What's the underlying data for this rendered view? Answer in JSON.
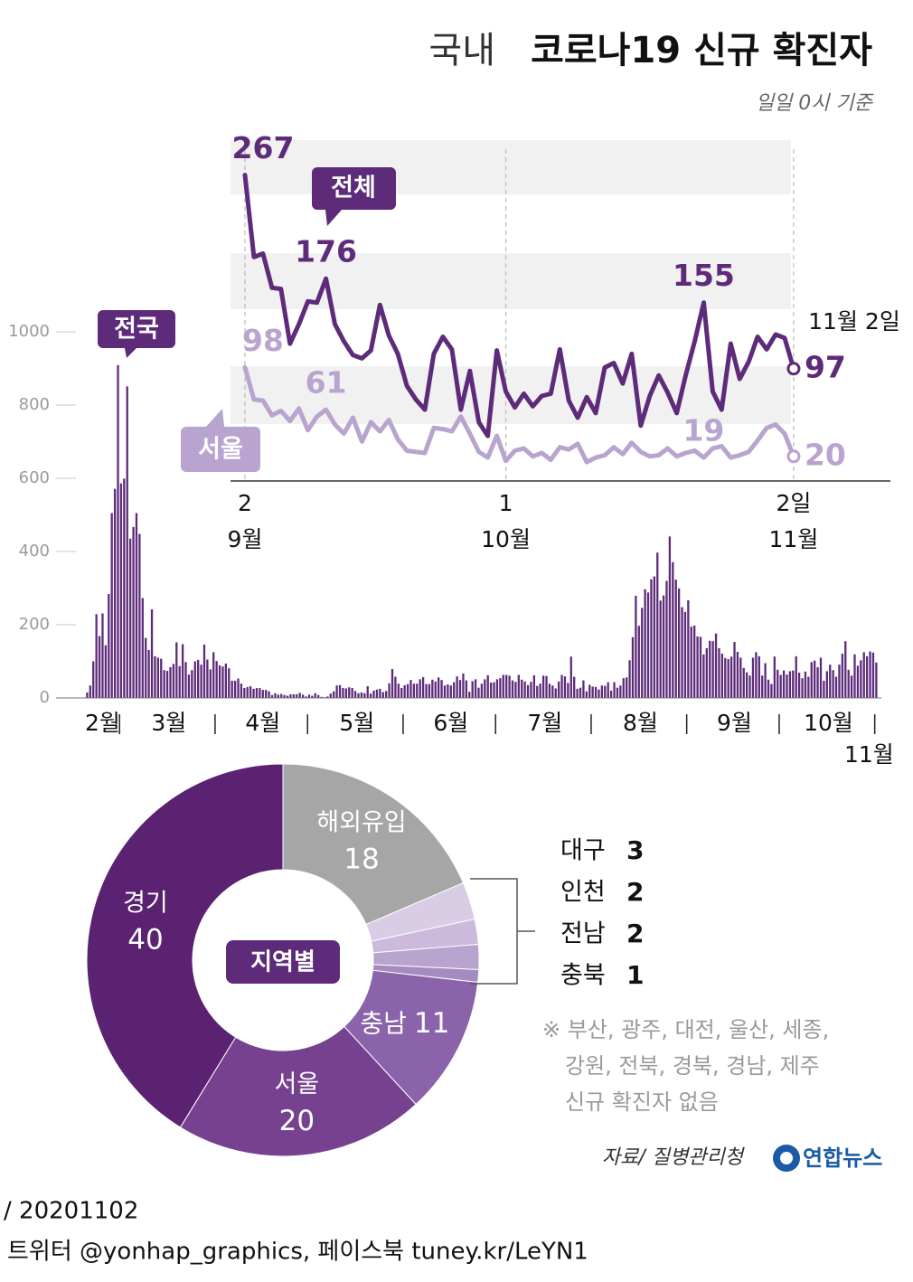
{
  "header": {
    "title_prefix": "국내",
    "title": "코로나19 신규 확진자",
    "subtitle": "일일 0시 기준"
  },
  "chart_data": [
    {
      "type": "bar",
      "series_name": "전국",
      "color": "#5e2b7a",
      "ylim": [
        0,
        1000
      ],
      "yticks": [
        0,
        200,
        400,
        600,
        800,
        1000
      ],
      "categories": [
        "2월",
        null,
        null,
        null,
        null,
        null,
        null,
        null,
        null,
        null,
        null,
        null,
        "3월",
        null,
        null,
        null,
        null,
        null,
        null,
        null,
        null,
        null,
        null,
        null,
        null,
        null,
        null,
        null,
        null,
        null,
        null,
        null,
        null,
        null,
        null,
        null,
        null,
        null,
        null,
        null,
        null,
        null,
        null,
        "4월",
        null,
        null,
        null,
        null,
        null,
        null,
        null,
        null,
        null,
        null,
        null,
        null,
        null,
        null,
        null,
        null,
        null,
        null,
        null,
        null,
        null,
        null,
        null,
        null,
        null,
        null,
        null,
        null,
        null,
        "5월",
        null,
        null,
        null,
        null,
        null,
        null,
        null,
        null,
        null,
        null,
        null,
        null,
        null,
        null,
        null,
        null,
        null,
        null,
        null,
        null,
        null,
        null,
        null,
        null,
        null,
        null,
        null,
        null,
        null,
        null,
        "6월",
        null,
        null,
        null,
        null,
        null,
        null,
        null,
        null,
        null,
        null,
        null,
        null,
        null,
        null,
        null,
        null,
        null,
        null,
        null,
        null,
        null,
        null,
        null,
        null,
        null,
        null,
        null,
        null,
        null,
        "7월",
        null,
        null,
        null,
        null,
        null,
        null,
        null,
        null,
        null,
        null,
        null,
        null,
        null,
        null,
        null,
        null,
        null,
        null,
        null,
        null,
        null,
        null,
        null,
        null,
        null,
        null,
        null,
        null,
        null,
        null,
        "8월",
        null,
        null,
        null,
        null,
        null,
        null,
        null,
        null,
        null,
        null,
        null,
        null,
        null,
        null,
        null,
        null,
        null,
        null,
        null,
        null,
        null,
        null,
        null,
        null,
        null,
        null,
        null,
        null,
        null,
        null,
        "9월",
        null,
        null,
        null,
        null,
        null,
        null,
        null,
        null,
        null,
        null,
        null,
        null,
        null,
        null,
        null,
        null,
        null,
        null,
        null,
        null,
        null,
        null,
        null,
        null,
        null,
        null,
        null,
        null,
        null,
        "10월",
        null,
        null,
        null,
        null,
        null,
        null,
        null,
        null,
        null,
        null,
        null,
        null,
        null,
        null,
        null,
        null,
        null,
        null,
        null,
        null,
        null,
        null,
        null,
        null,
        null,
        null,
        null,
        null,
        null,
        null,
        "11월"
      ],
      "values": [
        1,
        15,
        34,
        100,
        229,
        169,
        231,
        144,
        284,
        505,
        571,
        909,
        586,
        599,
        851,
        435,
        467,
        505,
        448,
        273,
        164,
        131,
        242,
        114,
        110,
        107,
        76,
        74,
        84,
        93,
        152,
        87,
        147,
        98,
        64,
        76,
        100,
        104,
        91,
        146,
        105,
        78,
        125,
        101,
        89,
        86,
        94,
        81,
        47,
        47,
        53,
        39,
        27,
        30,
        32,
        25,
        27,
        27,
        22,
        22,
        18,
        8,
        13,
        9,
        11,
        8,
        6,
        10,
        10,
        10,
        14,
        9,
        4,
        9,
        6,
        13,
        8,
        3,
        2,
        4,
        12,
        18,
        34,
        35,
        27,
        26,
        29,
        27,
        19,
        13,
        15,
        13,
        32,
        12,
        20,
        23,
        25,
        16,
        19,
        40,
        79,
        58,
        39,
        27,
        35,
        38,
        49,
        39,
        39,
        51,
        57,
        38,
        38,
        50,
        45,
        56,
        49,
        34,
        37,
        34,
        43,
        59,
        49,
        67,
        48,
        17,
        46,
        51,
        28,
        39,
        51,
        62,
        42,
        43,
        51,
        54,
        63,
        63,
        61,
        48,
        44,
        63,
        50,
        45,
        35,
        44,
        62,
        33,
        39,
        61,
        60,
        39,
        34,
        26,
        45,
        63,
        59,
        41,
        113,
        58,
        25,
        28,
        48,
        18,
        36,
        31,
        30,
        23,
        34,
        33,
        43,
        20,
        43,
        28,
        34,
        54,
        56,
        103,
        166,
        279,
        197,
        246,
        297,
        288,
        324,
        332,
        397,
        266,
        280,
        320,
        441,
        371,
        323,
        299,
        248,
        235,
        267,
        195,
        198,
        168,
        167,
        119,
        136,
        156,
        155,
        176,
        136,
        121,
        109,
        106,
        113,
        153,
        126,
        110,
        82,
        70,
        61,
        110,
        125,
        114,
        61,
        95,
        50,
        38,
        113,
        77,
        63,
        75,
        64,
        73,
        75,
        114,
        69,
        54,
        72,
        58,
        98,
        102,
        84,
        110,
        47,
        73,
        91,
        76,
        58,
        91,
        121,
        155,
        77,
        61,
        119,
        88,
        103,
        125,
        114,
        127,
        124,
        97
      ]
    },
    {
      "type": "line",
      "ylim": [
        0,
        300
      ],
      "categories": [
        "2",
        null,
        null,
        null,
        null,
        null,
        null,
        null,
        null,
        null,
        null,
        null,
        null,
        null,
        null,
        null,
        null,
        null,
        null,
        null,
        null,
        null,
        null,
        null,
        null,
        null,
        null,
        null,
        null,
        "1",
        null,
        null,
        null,
        null,
        null,
        null,
        null,
        null,
        null,
        null,
        null,
        null,
        null,
        null,
        null,
        null,
        null,
        null,
        null,
        null,
        null,
        null,
        null,
        null,
        null,
        null,
        null,
        null,
        null,
        null,
        null,
        "2일"
      ],
      "months": [
        "9월",
        "10월",
        "11월"
      ],
      "annotation": "11월 2일",
      "labeled_points": [
        0,
        9,
        51,
        61
      ],
      "series": [
        {
          "name": "전체",
          "color": "#5e2b7a",
          "values": [
            267,
            195,
            198,
            168,
            167,
            119,
            136,
            156,
            155,
            176,
            136,
            121,
            109,
            106,
            113,
            153,
            126,
            110,
            82,
            70,
            61,
            110,
            125,
            114,
            61,
            95,
            50,
            38,
            113,
            77,
            63,
            75,
            64,
            73,
            75,
            114,
            69,
            54,
            72,
            58,
            98,
            102,
            84,
            110,
            47,
            73,
            91,
            76,
            58,
            91,
            121,
            155,
            77,
            61,
            119,
            88,
            103,
            125,
            114,
            127,
            124,
            97
          ]
        },
        {
          "name": "서울",
          "color": "#b9a3cf",
          "values": [
            98,
            70,
            69,
            56,
            60,
            51,
            62,
            43,
            55,
            61,
            48,
            40,
            54,
            33,
            50,
            42,
            52,
            35,
            25,
            24,
            23,
            45,
            44,
            42,
            55,
            40,
            24,
            19,
            38,
            16,
            25,
            27,
            20,
            23,
            17,
            28,
            26,
            31,
            15,
            19,
            21,
            28,
            22,
            32,
            24,
            20,
            21,
            27,
            20,
            23,
            25,
            19,
            27,
            29,
            19,
            21,
            24,
            34,
            45,
            48,
            40,
            20
          ]
        }
      ]
    },
    {
      "type": "pie",
      "center_label": "지역별",
      "categories": [
        "해외유입",
        "대구",
        "인천",
        "전남",
        "충북",
        "충남",
        "서울",
        "경기"
      ],
      "values": [
        18,
        3,
        2,
        2,
        1,
        11,
        20,
        40
      ],
      "colors": [
        "#a6a6a6",
        "#d9cde6",
        "#cbbadc",
        "#b9a3cf",
        "#a58cc0",
        "#8a63ab",
        "#76418f",
        "#5a2270"
      ],
      "note": [
        "※ 부산, 광주, 대전, 울산, 세종,",
        "강원, 전북, 경북, 경남, 제주",
        "신규 확진자 없음"
      ]
    }
  ],
  "source": "자료/ 질병관리청",
  "logo": "연합뉴스",
  "footer": {
    "date": " / 20201102",
    "social": "트위터 @yonhap_graphics, 페이스북 tuney.kr/LeYN1"
  }
}
